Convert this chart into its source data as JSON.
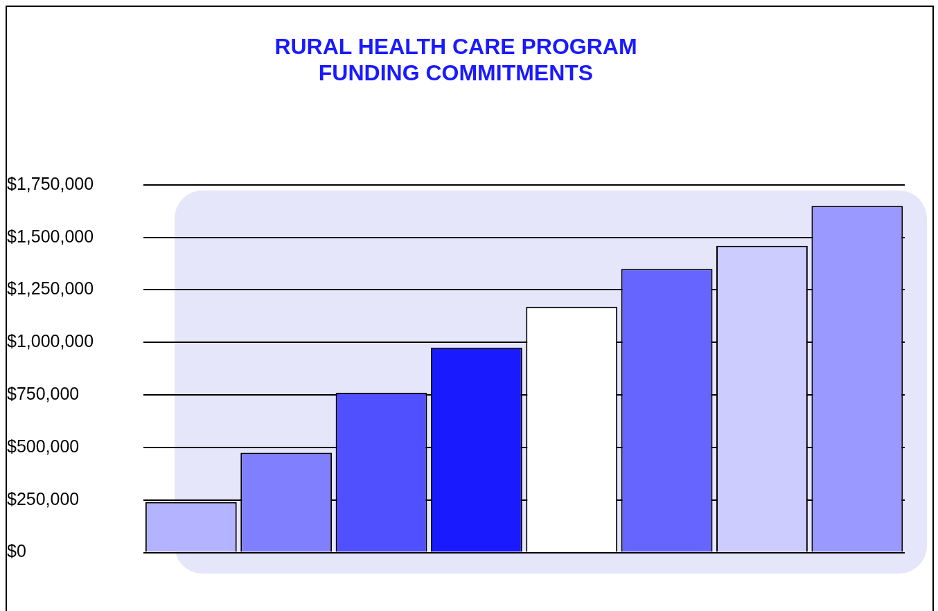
{
  "chart_data": {
    "type": "bar",
    "title": "RURAL HEALTH CARE PROGRAM\nFUNDING COMMITMENTS",
    "categories": [
      null,
      null,
      null,
      null,
      null,
      null,
      null,
      null
    ],
    "values": [
      240000,
      475000,
      760000,
      975000,
      1170000,
      1350000,
      1460000,
      1650000
    ],
    "colors": [
      "#b3b3ff",
      "#8080ff",
      "#5050ff",
      "#1a1aff",
      "#ffffff",
      "#6666ff",
      "#ccccff",
      "#9999ff"
    ],
    "ylim": [
      0,
      1750000
    ],
    "yticks": [
      {
        "value": 0,
        "label": "$0"
      },
      {
        "value": 250000,
        "label": "$250,000"
      },
      {
        "value": 500000,
        "label": "$500,000"
      },
      {
        "value": 750000,
        "label": "$750,000"
      },
      {
        "value": 1000000,
        "label": "$1,000,000"
      },
      {
        "value": 1250000,
        "label": "$1,250,000"
      },
      {
        "value": 1500000,
        "label": "$1,500,000"
      },
      {
        "value": 1750000,
        "label": "$1,750,000"
      }
    ],
    "grid": "y",
    "legend": false
  }
}
